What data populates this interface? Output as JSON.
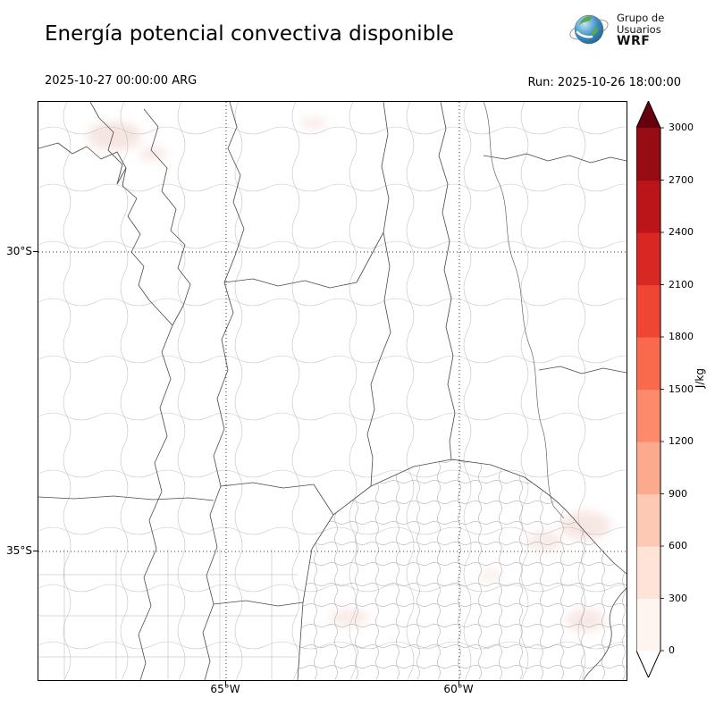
{
  "header": {
    "title": "Energía potencial convectiva disponible",
    "valid_time": "2025-10-27 00:00:00 ARG",
    "run": "Run: 2025-10-26 18:00:00",
    "logo": {
      "line1": "Grupo de",
      "line2": "Usuarios",
      "line3": "WRF"
    }
  },
  "map": {
    "lat_ticks": {
      "t30": "30°S",
      "t35": "35°S"
    },
    "lon_ticks": {
      "t65": "65°W",
      "t60": "60°W"
    }
  },
  "colorbar": {
    "units": "J/kg",
    "tick_values": [
      0,
      300,
      600,
      900,
      1200,
      1500,
      1800,
      2100,
      2400,
      2700,
      3000
    ],
    "segment_colors_bottom_to_top": [
      "#fff5f0",
      "#fee3d6",
      "#fdc9b4",
      "#fcaa8e",
      "#fc8a6b",
      "#f9694c",
      "#ef4533",
      "#d92723",
      "#bb151a",
      "#970b13"
    ],
    "over_color": "#67000d",
    "under_color": "#ffffff"
  },
  "chart_data": {
    "type": "heatmap",
    "title": "Energía potencial convectiva disponible",
    "units": "J/kg",
    "valid_time": "2025-10-27 00:00:00 ARG",
    "run": "2025-10-26 18:00:00",
    "colorbar_ticks": [
      0,
      300,
      600,
      900,
      1200,
      1500,
      1800,
      2100,
      2400,
      2700,
      3000
    ],
    "colorbar_range": [
      0,
      3000
    ],
    "lat_gridlines": [
      "30°S",
      "35°S"
    ],
    "lon_gridlines": [
      "65°W",
      "60°W"
    ],
    "field_note": "CAPE near 0 J/kg over most of the domain; faint patches below ~300 J/kg in the NW, E and SE"
  }
}
